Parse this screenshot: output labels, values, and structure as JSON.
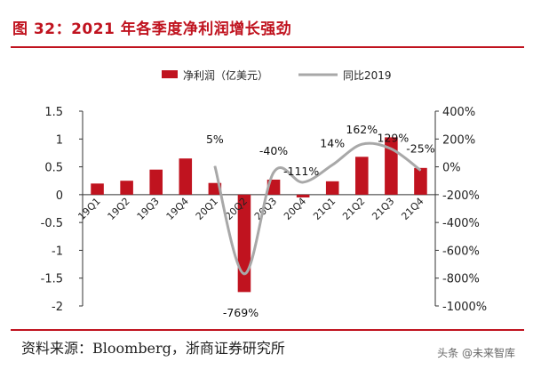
{
  "header": {
    "title": "图 32：2021 年各季度净利润增长强劲"
  },
  "footer": {
    "source": "资料来源：Bloomberg，浙商证券研究所",
    "watermark": "头条 @未来智库"
  },
  "colors": {
    "accent": "#c0131f",
    "bar": "#c0131f",
    "line": "#a8a8a8"
  },
  "chart_data": {
    "type": "bar",
    "categories": [
      "19Q1",
      "19Q2",
      "19Q3",
      "19Q4",
      "20Q1",
      "20Q2",
      "20Q3",
      "20Q4",
      "21Q1",
      "21Q2",
      "21Q3",
      "21Q4"
    ],
    "series": [
      {
        "name": "净利润（亿美元）",
        "type": "bar",
        "axis": "left",
        "values": [
          0.2,
          0.25,
          0.45,
          0.65,
          0.21,
          -1.75,
          0.27,
          -0.05,
          0.24,
          0.68,
          1.03,
          0.48
        ]
      },
      {
        "name": "同比2019",
        "type": "line",
        "axis": "right",
        "values": [
          null,
          null,
          null,
          null,
          5,
          -769,
          -40,
          -111,
          14,
          162,
          129,
          -25
        ],
        "labels": [
          "",
          "",
          "",
          "",
          "5%",
          "-769%",
          "-40%",
          "-111%",
          "14%",
          "162%",
          "129%",
          "-25%"
        ]
      }
    ],
    "y_left": {
      "lim": [
        -2,
        1.5
      ],
      "ticks": [
        1.5,
        1,
        0.5,
        0,
        -0.5,
        -1,
        -1.5,
        -2
      ],
      "tick_labels": [
        "1.5",
        "1",
        "0.5",
        "0",
        "-0.5",
        "-1",
        "-1.5",
        "-2"
      ]
    },
    "y_right": {
      "lim": [
        -1000,
        400
      ],
      "ticks": [
        400,
        200,
        0,
        -200,
        -400,
        -600,
        -800,
        -1000
      ],
      "tick_labels": [
        "400%",
        "200%",
        "0%",
        "-200%",
        "-400%",
        "-600%",
        "-800%",
        "-1000%"
      ]
    },
    "legend": {
      "position": "top",
      "entries": [
        "净利润（亿美元）",
        "同比2019"
      ]
    },
    "grid": false
  }
}
